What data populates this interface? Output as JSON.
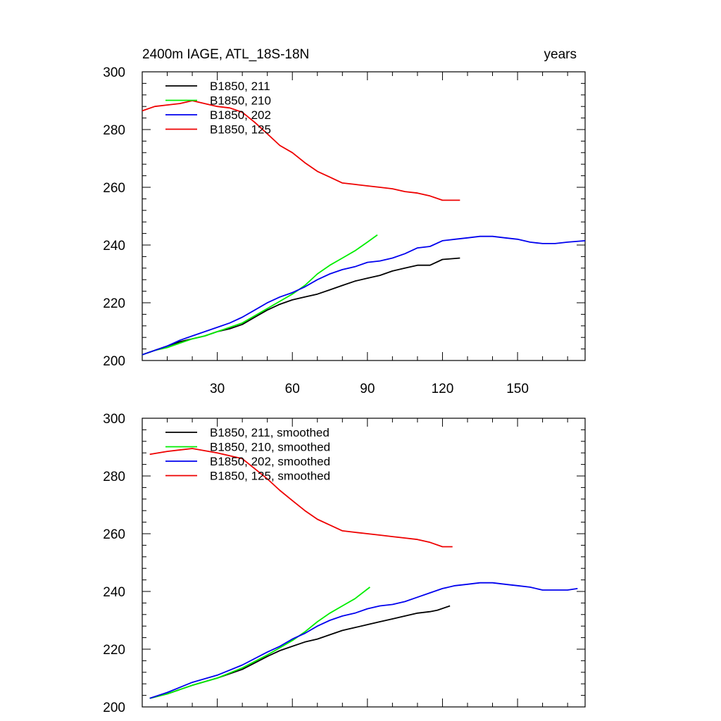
{
  "header": {
    "title": "2400m IAGE, ATL_18S-18N",
    "units": "years"
  },
  "chart_data": [
    {
      "type": "line",
      "ylim": [
        200,
        300
      ],
      "xlim": [
        0,
        177
      ],
      "yticks": [
        200,
        220,
        240,
        260,
        280,
        300
      ],
      "xticks": [
        30,
        60,
        90,
        120,
        150
      ],
      "x_tick_labels_shown": true,
      "legend_position": "top-left",
      "series": [
        {
          "name": "B1850, 211",
          "color": "#000000",
          "x": [
            0,
            5,
            10,
            15,
            20,
            25,
            30,
            35,
            40,
            45,
            50,
            55,
            60,
            65,
            70,
            75,
            80,
            85,
            90,
            95,
            100,
            105,
            110,
            115,
            120,
            127
          ],
          "y": [
            202,
            203.5,
            205,
            206.5,
            207.5,
            208.5,
            210,
            211,
            212.5,
            215,
            217.5,
            219.5,
            221,
            222,
            223,
            224.5,
            226,
            227.5,
            228.5,
            229.5,
            231,
            232,
            233,
            233,
            235,
            235.5
          ]
        },
        {
          "name": "B1850, 210",
          "color": "#00ee00",
          "x": [
            0,
            5,
            10,
            15,
            20,
            25,
            30,
            35,
            40,
            45,
            50,
            55,
            60,
            65,
            70,
            75,
            80,
            85,
            90,
            94
          ],
          "y": [
            202,
            203.5,
            204.5,
            206,
            207.5,
            208.5,
            210,
            211.5,
            213,
            215.5,
            218,
            220.5,
            223,
            226,
            230,
            233,
            235.5,
            238,
            241,
            243.5
          ]
        },
        {
          "name": "B1850, 202",
          "color": "#0000ee",
          "x": [
            0,
            5,
            10,
            15,
            20,
            25,
            30,
            35,
            40,
            45,
            50,
            55,
            60,
            65,
            70,
            75,
            80,
            85,
            90,
            95,
            100,
            105,
            110,
            115,
            120,
            125,
            130,
            135,
            140,
            145,
            150,
            155,
            160,
            165,
            170,
            177
          ],
          "y": [
            202,
            203.5,
            205,
            207,
            208.5,
            210,
            211.5,
            213,
            215,
            217.5,
            220,
            222,
            223.5,
            225.5,
            228,
            230,
            231.5,
            232.5,
            234,
            234.5,
            235.5,
            237,
            239,
            239.5,
            241.5,
            242,
            242.5,
            243,
            243,
            242.5,
            242,
            241,
            240.5,
            240.5,
            241,
            241.5
          ]
        },
        {
          "name": "B1850, 125",
          "color": "#ee0000",
          "x": [
            0,
            5,
            10,
            15,
            20,
            25,
            30,
            35,
            40,
            45,
            50,
            55,
            60,
            65,
            70,
            75,
            80,
            85,
            90,
            95,
            100,
            105,
            110,
            115,
            120,
            127
          ],
          "y": [
            286.5,
            288,
            288.5,
            289,
            290,
            289,
            288,
            287.5,
            286,
            282.5,
            278.5,
            274.5,
            272,
            268.5,
            265.5,
            263.5,
            261.5,
            261,
            260.5,
            260,
            259.5,
            258.5,
            258,
            257,
            255.5,
            255.5
          ]
        }
      ]
    },
    {
      "type": "line",
      "ylim": [
        200,
        300
      ],
      "xlim": [
        0,
        177
      ],
      "yticks": [
        200,
        220,
        240,
        260,
        280,
        300
      ],
      "xticks": [
        30,
        60,
        90,
        120,
        150
      ],
      "x_tick_labels_shown": false,
      "legend_position": "top-left",
      "series": [
        {
          "name": "B1850, 211, smoothed",
          "color": "#000000",
          "x": [
            3,
            10,
            20,
            30,
            40,
            50,
            55,
            60,
            65,
            70,
            75,
            80,
            85,
            90,
            95,
            100,
            105,
            110,
            115,
            118,
            123
          ],
          "y": [
            203,
            204.5,
            207.5,
            210,
            213,
            217.5,
            219.5,
            221,
            222.5,
            223.5,
            225,
            226.5,
            227.5,
            228.5,
            229.5,
            230.5,
            231.5,
            232.5,
            233,
            233.5,
            235
          ]
        },
        {
          "name": "B1850, 210, smoothed",
          "color": "#00ee00",
          "x": [
            3,
            10,
            20,
            30,
            40,
            50,
            55,
            60,
            65,
            70,
            75,
            80,
            85,
            91
          ],
          "y": [
            203,
            204.5,
            207.5,
            210,
            213.5,
            218,
            220.5,
            223,
            226,
            229.5,
            232.5,
            235,
            237.5,
            241.5
          ]
        },
        {
          "name": "B1850, 202, smoothed",
          "color": "#0000ee",
          "x": [
            3,
            10,
            20,
            30,
            40,
            50,
            55,
            60,
            65,
            70,
            75,
            80,
            85,
            90,
            95,
            100,
            105,
            110,
            115,
            120,
            125,
            130,
            135,
            140,
            145,
            150,
            155,
            160,
            165,
            170,
            174
          ],
          "y": [
            203,
            205,
            208.5,
            211,
            214.5,
            219,
            221,
            223.5,
            225.5,
            228,
            230,
            231.5,
            232.5,
            234,
            235,
            235.5,
            236.5,
            238,
            239.5,
            241,
            242,
            242.5,
            243,
            243,
            242.5,
            242,
            241.5,
            240.5,
            240.5,
            240.5,
            241
          ]
        },
        {
          "name": "B1850, 125, smoothed",
          "color": "#ee0000",
          "x": [
            3,
            10,
            20,
            30,
            40,
            50,
            55,
            60,
            65,
            70,
            75,
            80,
            85,
            90,
            95,
            100,
            105,
            110,
            115,
            120,
            124
          ],
          "y": [
            287.5,
            288.5,
            289.5,
            288,
            286,
            279,
            275,
            271.5,
            268,
            265,
            263,
            261,
            260.5,
            260,
            259.5,
            259,
            258.5,
            258,
            257,
            255.5,
            255.5
          ]
        }
      ]
    }
  ]
}
